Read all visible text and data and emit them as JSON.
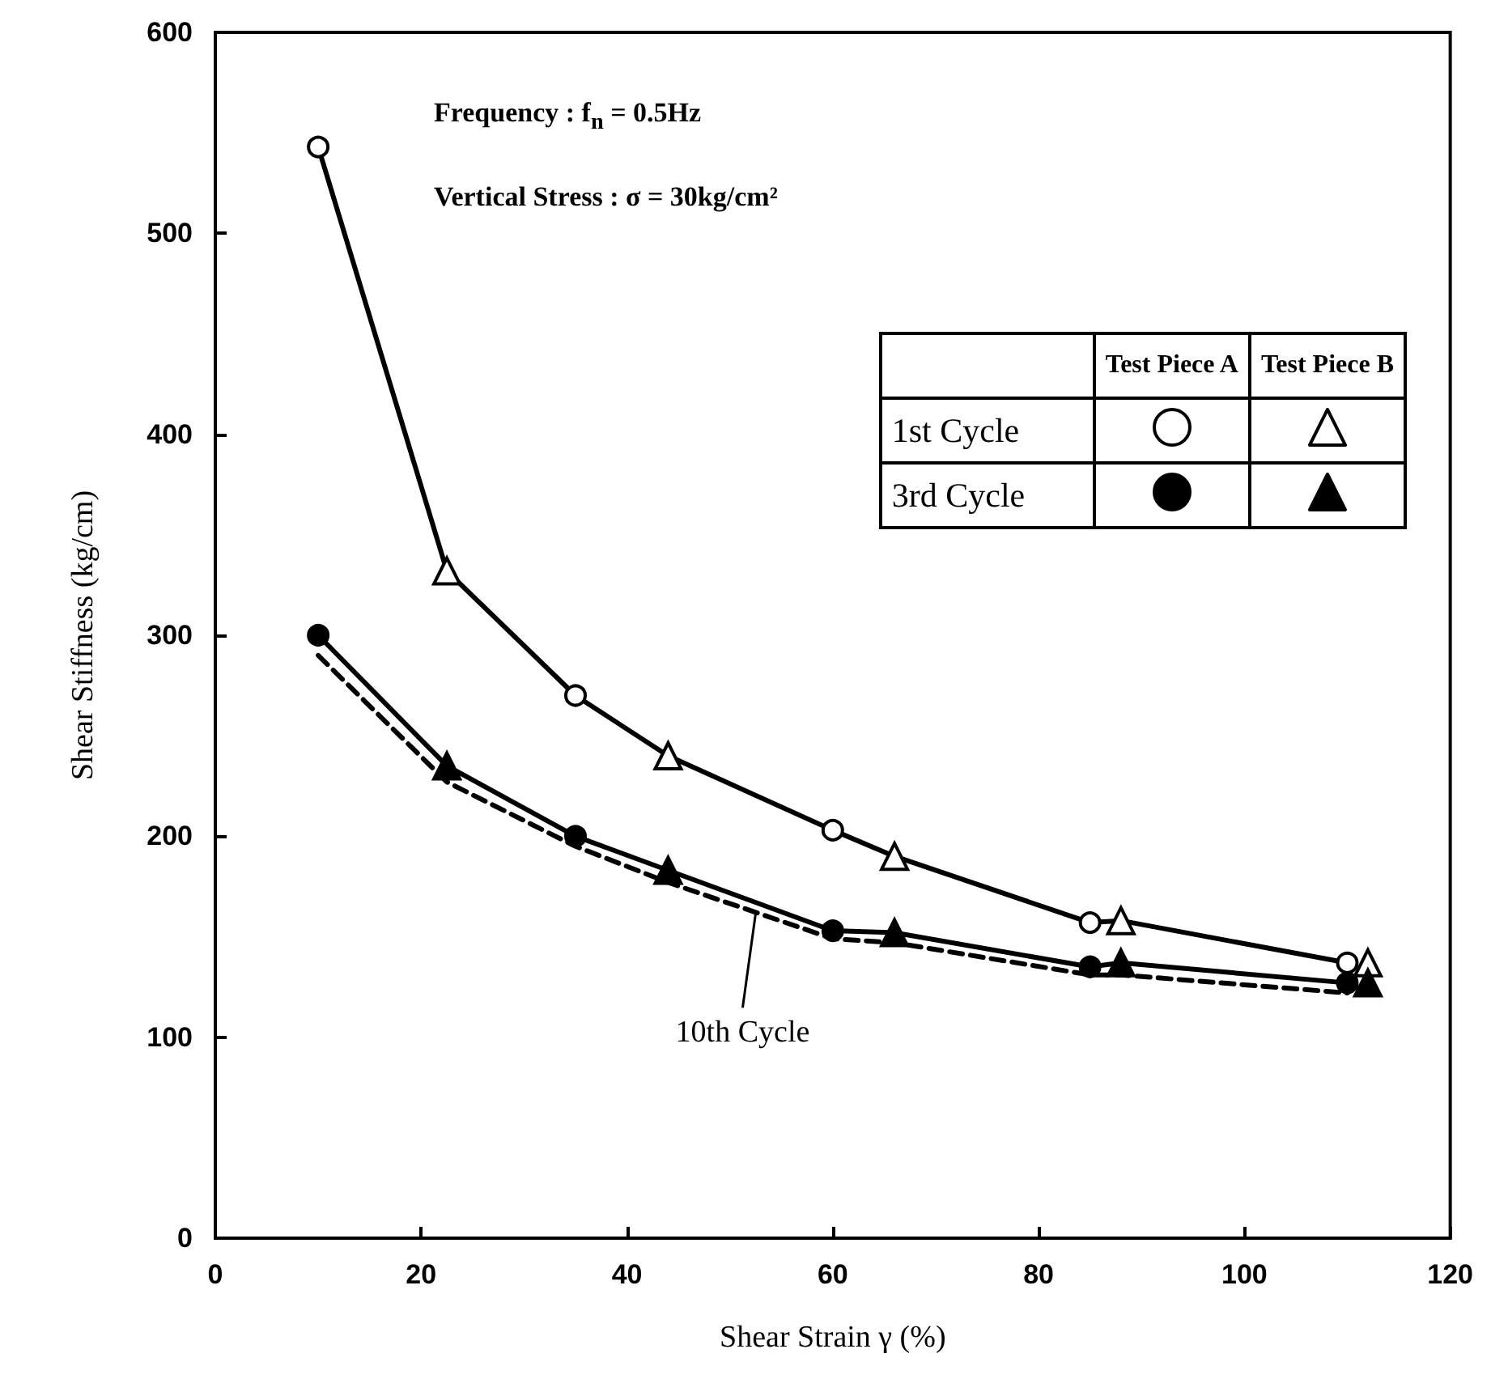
{
  "chart_data": {
    "type": "scatter",
    "xlabel": "Shear Strain γ (%)",
    "ylabel": "Shear Stiffness (kg/cm)",
    "xlim": [
      0,
      120
    ],
    "xticks": [
      0,
      20,
      40,
      60,
      80,
      100,
      120
    ],
    "ylim": [
      0,
      600
    ],
    "yticks": [
      0,
      100,
      200,
      300,
      400,
      500,
      600
    ],
    "grid": false,
    "legend": "top right",
    "annotations": [
      "Frequency : f$_{n}$ = 0.5Hz",
      "Vertical Stress : σ = 30kg/cm²",
      "Test Piece A",
      "Test Piece B",
      {
        "text": "10th Cycle",
        "x": 52.5,
        "y": 163
      }
    ],
    "series": [
      {
        "type": "line",
        "name": "1st Cycle",
        "color": "#000000",
        "line_style": "solid",
        "marker": "none",
        "x": [
          10,
          22.5,
          35,
          44,
          60,
          66,
          85,
          88,
          110
        ],
        "values": [
          543,
          332,
          270,
          240,
          203,
          190,
          157,
          158,
          137
        ]
      },
      {
        "type": "line",
        "name": "3rd Cycle",
        "color": "#000000",
        "line_style": "solid",
        "marker": "none",
        "x": [
          10,
          22.5,
          35,
          44,
          60,
          66,
          85,
          88,
          110
        ],
        "values": [
          300,
          235,
          200,
          183,
          153,
          152,
          135,
          137,
          127
        ]
      },
      {
        "type": "line",
        "color": "#000000",
        "line_style": "dashed",
        "marker": "none",
        "x": [
          10,
          22.5,
          35,
          44,
          60,
          66,
          85,
          88,
          110
        ],
        "values": [
          290,
          227,
          195,
          177,
          149,
          147,
          131,
          131,
          122
        ]
      },
      {
        "color": "#ffffff",
        "marker": "circle",
        "x": [
          10,
          35,
          60,
          85,
          110
        ],
        "values": [
          543,
          270,
          203,
          157,
          137
        ]
      },
      {
        "color": "#ffffff",
        "marker": "triangle",
        "x": [
          22.5,
          44,
          66,
          88,
          112
        ],
        "values": [
          332,
          240,
          190,
          158,
          137
        ]
      },
      {
        "color": "#000000",
        "marker": "circle",
        "x": [
          10,
          35,
          60,
          85,
          110
        ],
        "values": [
          300,
          200,
          153,
          135,
          127
        ]
      },
      {
        "color": "#000000",
        "marker": "triangle",
        "x": [
          22.5,
          44,
          66,
          88,
          112
        ],
        "values": [
          235,
          183,
          152,
          137,
          127
        ]
      }
    ]
  }
}
